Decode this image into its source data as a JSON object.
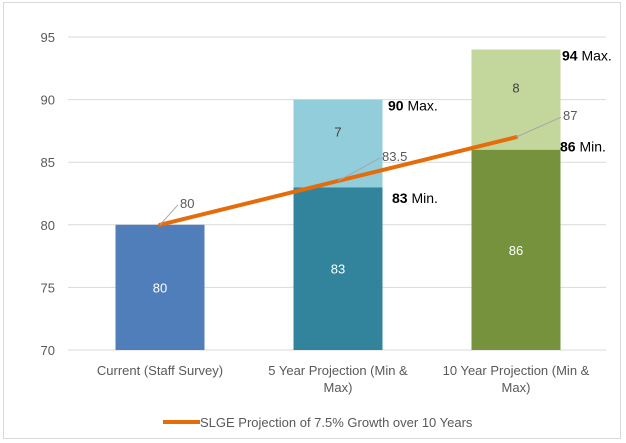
{
  "chart_data": {
    "type": "bar",
    "categories": [
      [
        "Current (Staff Survey)"
      ],
      [
        "5 Year Projection (Min &",
        "Max)"
      ],
      [
        "10 Year Projection (Min &",
        "Max)"
      ]
    ],
    "ylim": [
      70,
      95
    ],
    "yticks": [
      "70",
      "75",
      "80",
      "85",
      "90",
      "95"
    ],
    "grid": true,
    "bars": [
      {
        "base_value": 80,
        "base_label": "80",
        "extra_value": null,
        "extra_label": null,
        "base_color": "#4f7ebb",
        "extra_color": null
      },
      {
        "base_value": 83,
        "base_label": "83",
        "extra_value": 7,
        "extra_label": "7",
        "base_color": "#31849b",
        "extra_color": "#92cddc"
      },
      {
        "base_value": 86,
        "base_label": "86",
        "extra_value": 8,
        "extra_label": "8",
        "base_color": "#76923c",
        "extra_color": "#c3d69b"
      }
    ],
    "annotations": {
      "max": [
        {
          "value": 90,
          "bold": "90",
          "text": "Max."
        },
        {
          "value": 94,
          "bold": "94",
          "text": "Max."
        }
      ],
      "min": [
        {
          "value": 83,
          "bold": "83",
          "text": "Min."
        },
        {
          "value": 86,
          "bold": "86",
          "text": "Min."
        }
      ]
    },
    "series": [
      {
        "name": "SLGE Projection of 7.5% Growth over 10 Years",
        "type": "line",
        "values": [
          80,
          83.5,
          87
        ],
        "labels": [
          "80",
          "83.5",
          "87"
        ],
        "color": "#e46c0a"
      }
    ],
    "legend_position": "bottom"
  }
}
